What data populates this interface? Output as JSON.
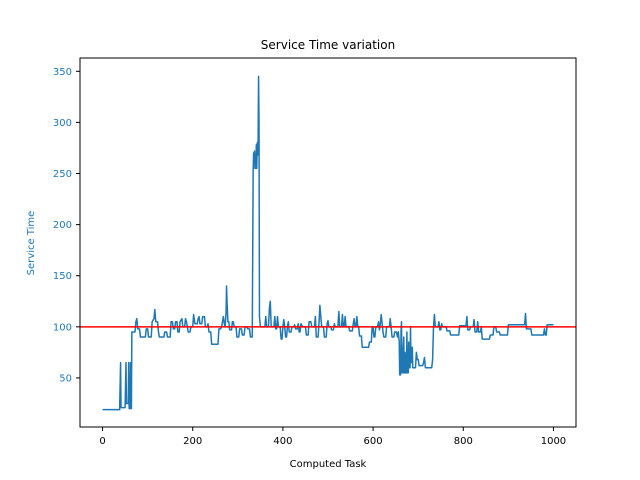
{
  "chart_data": {
    "type": "line",
    "title": "Service Time variation",
    "xlabel": "Computed Task",
    "ylabel": "Service Time",
    "xlim": [
      -50,
      1050
    ],
    "ylim": [
      2,
      363
    ],
    "xticks": [
      0,
      200,
      400,
      600,
      800,
      1000
    ],
    "yticks": [
      50,
      100,
      150,
      200,
      250,
      300,
      350
    ],
    "grid": false,
    "legend": "none",
    "colors": {
      "series": "#1f77b4",
      "reference": "#ff0000",
      "ylabel": "#1f77b4",
      "yticks": "#1f77b4",
      "axis": "#000000"
    },
    "reference_line": {
      "y": 100
    },
    "series": [
      {
        "points": [
          [
            0,
            19
          ],
          [
            38,
            19
          ],
          [
            38,
            21
          ],
          [
            40,
            65
          ],
          [
            41,
            21
          ],
          [
            50,
            21
          ],
          [
            52,
            65
          ],
          [
            53,
            25
          ],
          [
            57,
            25
          ],
          [
            58,
            65
          ],
          [
            59,
            20
          ],
          [
            61,
            20
          ],
          [
            62,
            65
          ],
          [
            64,
            20
          ],
          [
            65,
            95
          ],
          [
            72,
            95
          ],
          [
            74,
            105
          ],
          [
            76,
            108
          ],
          [
            78,
            98
          ],
          [
            82,
            98
          ],
          [
            84,
            90
          ],
          [
            95,
            90
          ],
          [
            97,
            98
          ],
          [
            100,
            98
          ],
          [
            102,
            90
          ],
          [
            108,
            90
          ],
          [
            110,
            105
          ],
          [
            114,
            108
          ],
          [
            116,
            117
          ],
          [
            118,
            105
          ],
          [
            122,
            105
          ],
          [
            124,
            95
          ],
          [
            126,
            90
          ],
          [
            136,
            90
          ],
          [
            138,
            95
          ],
          [
            142,
            95
          ],
          [
            144,
            90
          ],
          [
            150,
            90
          ],
          [
            152,
            105
          ],
          [
            155,
            105
          ],
          [
            157,
            98
          ],
          [
            160,
            98
          ],
          [
            162,
            105
          ],
          [
            165,
            105
          ],
          [
            167,
            95
          ],
          [
            170,
            95
          ],
          [
            172,
            105
          ],
          [
            176,
            108
          ],
          [
            178,
            100
          ],
          [
            182,
            100
          ],
          [
            184,
            108
          ],
          [
            186,
            105
          ],
          [
            190,
            95
          ],
          [
            194,
            95
          ],
          [
            196,
            100
          ],
          [
            200,
            100
          ],
          [
            202,
            112
          ],
          [
            205,
            103
          ],
          [
            210,
            103
          ],
          [
            212,
            108
          ],
          [
            214,
            110
          ],
          [
            216,
            103
          ],
          [
            220,
            103
          ],
          [
            222,
            110
          ],
          [
            226,
            110
          ],
          [
            228,
            100
          ],
          [
            232,
            100
          ],
          [
            234,
            103
          ],
          [
            236,
            95
          ],
          [
            240,
            95
          ],
          [
            242,
            83
          ],
          [
            256,
            83
          ],
          [
            258,
            98
          ],
          [
            262,
            98
          ],
          [
            264,
            100
          ],
          [
            266,
            105
          ],
          [
            268,
            110
          ],
          [
            270,
            103
          ],
          [
            272,
            100
          ],
          [
            274,
            115
          ],
          [
            275,
            140
          ],
          [
            276,
            125
          ],
          [
            278,
            105
          ],
          [
            280,
            105
          ],
          [
            282,
            97
          ],
          [
            286,
            97
          ],
          [
            288,
            105
          ],
          [
            290,
            105
          ],
          [
            292,
            100
          ],
          [
            296,
            100
          ],
          [
            298,
            90
          ],
          [
            302,
            90
          ],
          [
            304,
            98
          ],
          [
            308,
            98
          ],
          [
            310,
            92
          ],
          [
            314,
            92
          ],
          [
            316,
            100
          ],
          [
            320,
            100
          ],
          [
            322,
            98
          ],
          [
            326,
            98
          ],
          [
            328,
            90
          ],
          [
            332,
            90
          ],
          [
            334,
            252
          ],
          [
            335,
            270
          ],
          [
            336,
            268
          ],
          [
            337,
            272
          ],
          [
            338,
            255
          ],
          [
            339,
            258
          ],
          [
            340,
            255
          ],
          [
            341,
            278
          ],
          [
            342,
            255
          ],
          [
            343,
            280
          ],
          [
            344,
            268
          ],
          [
            345,
            283
          ],
          [
            346,
            345
          ],
          [
            347,
            300
          ],
          [
            348,
            110
          ],
          [
            350,
            100
          ],
          [
            360,
            100
          ],
          [
            362,
            110
          ],
          [
            364,
            100
          ],
          [
            368,
            100
          ],
          [
            370,
            118
          ],
          [
            372,
            125
          ],
          [
            374,
            100
          ],
          [
            380,
            100
          ],
          [
            382,
            110
          ],
          [
            384,
            98
          ],
          [
            386,
            98
          ],
          [
            388,
            110
          ],
          [
            390,
            100
          ],
          [
            394,
            100
          ],
          [
            396,
            88
          ],
          [
            398,
            88
          ],
          [
            400,
            100
          ],
          [
            402,
            107
          ],
          [
            404,
            100
          ],
          [
            406,
            90
          ],
          [
            408,
            90
          ],
          [
            410,
            100
          ],
          [
            412,
            105
          ],
          [
            414,
            95
          ],
          [
            418,
            95
          ],
          [
            420,
            100
          ],
          [
            424,
            100
          ],
          [
            426,
            102
          ],
          [
            428,
            98
          ],
          [
            432,
            98
          ],
          [
            434,
            103
          ],
          [
            436,
            95
          ],
          [
            438,
            95
          ],
          [
            440,
            103
          ],
          [
            444,
            100
          ],
          [
            450,
            100
          ],
          [
            452,
            92
          ],
          [
            456,
            92
          ],
          [
            458,
            105
          ],
          [
            462,
            105
          ],
          [
            464,
            100
          ],
          [
            470,
            100
          ],
          [
            472,
            110
          ],
          [
            474,
            90
          ],
          [
            478,
            90
          ],
          [
            480,
            103
          ],
          [
            482,
            121
          ],
          [
            484,
            110
          ],
          [
            486,
            100
          ],
          [
            490,
            100
          ],
          [
            492,
            90
          ],
          [
            496,
            90
          ],
          [
            498,
            103
          ],
          [
            500,
            106
          ],
          [
            502,
            100
          ],
          [
            506,
            100
          ],
          [
            508,
            97
          ],
          [
            512,
            97
          ],
          [
            514,
            103
          ],
          [
            516,
            100
          ],
          [
            522,
            100
          ],
          [
            524,
            115
          ],
          [
            526,
            100
          ],
          [
            530,
            100
          ],
          [
            532,
            112
          ],
          [
            534,
            100
          ],
          [
            536,
            100
          ],
          [
            538,
            110
          ],
          [
            540,
            100
          ],
          [
            546,
            100
          ],
          [
            548,
            96
          ],
          [
            554,
            96
          ],
          [
            556,
            103
          ],
          [
            558,
            108
          ],
          [
            560,
            100
          ],
          [
            562,
            100
          ],
          [
            564,
            110
          ],
          [
            566,
            100
          ],
          [
            568,
            100
          ],
          [
            570,
            91
          ],
          [
            574,
            91
          ],
          [
            576,
            80
          ],
          [
            590,
            80
          ],
          [
            592,
            85
          ],
          [
            596,
            85
          ],
          [
            598,
            100
          ],
          [
            600,
            100
          ],
          [
            602,
            90
          ],
          [
            604,
            90
          ],
          [
            606,
            100
          ],
          [
            608,
            100
          ],
          [
            610,
            100
          ],
          [
            612,
            105
          ],
          [
            614,
            97
          ],
          [
            616,
            103
          ],
          [
            618,
            112
          ],
          [
            620,
            103
          ],
          [
            622,
            95
          ],
          [
            624,
            90
          ],
          [
            628,
            90
          ],
          [
            630,
            100
          ],
          [
            636,
            100
          ],
          [
            638,
            108
          ],
          [
            640,
            100
          ],
          [
            642,
            90
          ],
          [
            646,
            90
          ],
          [
            648,
            95
          ],
          [
            652,
            95
          ],
          [
            654,
            90
          ],
          [
            656,
            95
          ],
          [
            658,
            85
          ],
          [
            659,
            53
          ],
          [
            661,
            53
          ],
          [
            662,
            96
          ],
          [
            663,
            105
          ],
          [
            664,
            55
          ],
          [
            666,
            55
          ],
          [
            667,
            80
          ],
          [
            668,
            90
          ],
          [
            669,
            55
          ],
          [
            670,
            55
          ],
          [
            671,
            75
          ],
          [
            672,
            55
          ],
          [
            674,
            55
          ],
          [
            675,
            95
          ],
          [
            676,
            55
          ],
          [
            678,
            55
          ],
          [
            679,
            85
          ],
          [
            680,
            60
          ],
          [
            682,
            60
          ],
          [
            683,
            100
          ],
          [
            684,
            65
          ],
          [
            686,
            65
          ],
          [
            687,
            80
          ],
          [
            688,
            60
          ],
          [
            694,
            60
          ],
          [
            696,
            75
          ],
          [
            698,
            68
          ],
          [
            700,
            68
          ],
          [
            702,
            62
          ],
          [
            710,
            62
          ],
          [
            712,
            65
          ],
          [
            714,
            70
          ],
          [
            716,
            60
          ],
          [
            730,
            60
          ],
          [
            732,
            68
          ],
          [
            734,
            100
          ],
          [
            736,
            112
          ],
          [
            738,
            100
          ],
          [
            744,
            100
          ],
          [
            746,
            105
          ],
          [
            748,
            97
          ],
          [
            750,
            97
          ],
          [
            752,
            103
          ],
          [
            754,
            100
          ],
          [
            762,
            100
          ],
          [
            764,
            96
          ],
          [
            770,
            96
          ],
          [
            772,
            92
          ],
          [
            790,
            92
          ],
          [
            792,
            101
          ],
          [
            806,
            101
          ],
          [
            808,
            110
          ],
          [
            810,
            97
          ],
          [
            814,
            97
          ],
          [
            816,
            100
          ],
          [
            822,
            100
          ],
          [
            824,
            107
          ],
          [
            826,
            95
          ],
          [
            830,
            95
          ],
          [
            832,
            105
          ],
          [
            834,
            95
          ],
          [
            838,
            95
          ],
          [
            840,
            100
          ],
          [
            842,
            88
          ],
          [
            858,
            88
          ],
          [
            860,
            92
          ],
          [
            866,
            92
          ],
          [
            868,
            100
          ],
          [
            872,
            100
          ],
          [
            874,
            95
          ],
          [
            880,
            95
          ],
          [
            882,
            92
          ],
          [
            898,
            92
          ],
          [
            900,
            102
          ],
          [
            936,
            102
          ],
          [
            938,
            113
          ],
          [
            940,
            98
          ],
          [
            950,
            98
          ],
          [
            952,
            92
          ],
          [
            978,
            92
          ],
          [
            980,
            98
          ],
          [
            982,
            92
          ],
          [
            984,
            92
          ],
          [
            986,
            102
          ],
          [
            1000,
            102
          ]
        ]
      }
    ]
  }
}
